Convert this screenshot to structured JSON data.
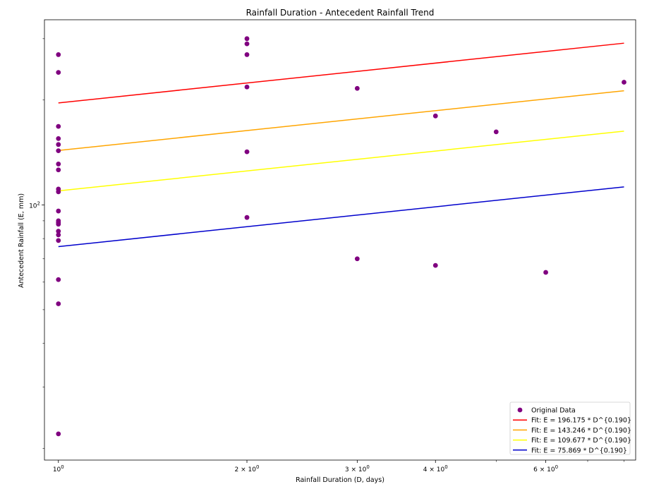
{
  "chart_data": {
    "type": "scatter",
    "title": "Rainfall Duration - Antecedent Rainfall Trend",
    "xlabel": "Rainfall Duration (D, days)",
    "ylabel": "Antecedent Rainfall (E, mm)",
    "xscale": "log",
    "yscale": "log",
    "xlim": [
      0.95,
      8.35
    ],
    "ylim": [
      18.5,
      340
    ],
    "x_ticks": [
      {
        "value": 1,
        "label": "10^0",
        "base": "10",
        "exp": "0"
      },
      {
        "value": 2,
        "label": "2×10^0",
        "base": "2 × 10",
        "exp": "0"
      },
      {
        "value": 3,
        "label": "3×10^0",
        "base": "3 × 10",
        "exp": "0"
      },
      {
        "value": 4,
        "label": "4×10^0",
        "base": "4 × 10",
        "exp": "0"
      },
      {
        "value": 6,
        "label": "6×10^0",
        "base": "6 × 10",
        "exp": "0"
      }
    ],
    "x_minor_ticks": [
      5,
      7,
      8
    ],
    "y_ticks": [
      {
        "value": 100,
        "label": "10^2",
        "base": "10",
        "exp": "2"
      }
    ],
    "y_minor_ticks": [
      20,
      30,
      40,
      50,
      60,
      70,
      80,
      90,
      200,
      300
    ],
    "grid": false,
    "legend_position": "bottom-right",
    "scatter": {
      "name": "Original Data",
      "color": "#800080",
      "points": [
        {
          "x": 1,
          "y": 270
        },
        {
          "x": 1,
          "y": 240
        },
        {
          "x": 1,
          "y": 168
        },
        {
          "x": 1,
          "y": 155
        },
        {
          "x": 1,
          "y": 149
        },
        {
          "x": 1,
          "y": 143
        },
        {
          "x": 1,
          "y": 131
        },
        {
          "x": 1,
          "y": 126
        },
        {
          "x": 1,
          "y": 111
        },
        {
          "x": 1,
          "y": 109
        },
        {
          "x": 1,
          "y": 96
        },
        {
          "x": 1,
          "y": 90
        },
        {
          "x": 1,
          "y": 89
        },
        {
          "x": 1,
          "y": 88
        },
        {
          "x": 1,
          "y": 84
        },
        {
          "x": 1,
          "y": 82
        },
        {
          "x": 1,
          "y": 79
        },
        {
          "x": 1,
          "y": 61
        },
        {
          "x": 1,
          "y": 52
        },
        {
          "x": 1,
          "y": 22
        },
        {
          "x": 2,
          "y": 300
        },
        {
          "x": 2,
          "y": 290
        },
        {
          "x": 2,
          "y": 270
        },
        {
          "x": 2,
          "y": 218
        },
        {
          "x": 2,
          "y": 142
        },
        {
          "x": 2,
          "y": 92
        },
        {
          "x": 3,
          "y": 216
        },
        {
          "x": 3,
          "y": 70
        },
        {
          "x": 4,
          "y": 180
        },
        {
          "x": 4,
          "y": 67
        },
        {
          "x": 5,
          "y": 162
        },
        {
          "x": 6,
          "y": 64
        },
        {
          "x": 8,
          "y": 225
        }
      ]
    },
    "series": [
      {
        "name": "Fit: E = 196.175 * D^{0.190}",
        "color": "#ff0000",
        "a": 196.175,
        "b": 0.19
      },
      {
        "name": "Fit: E = 143.246 * D^{0.190}",
        "color": "#ffa500",
        "a": 143.246,
        "b": 0.19
      },
      {
        "name": "Fit: E = 109.677 * D^{0.190}",
        "color": "#ffff00",
        "a": 109.677,
        "b": 0.19
      },
      {
        "name": "Fit: E = 75.869 * D^{0.190}",
        "color": "#0000cc",
        "a": 75.869,
        "b": 0.19
      }
    ],
    "fit_x_range": [
      1,
      8
    ]
  }
}
